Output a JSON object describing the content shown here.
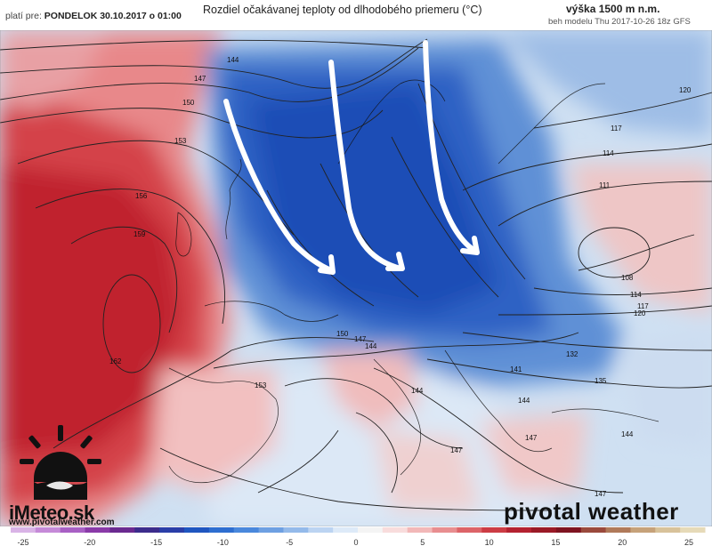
{
  "header": {
    "valid_label": "platí pre:",
    "valid_time": "PONDELOK 30.10.2017 o 01:00",
    "title": "Rozdiel očakávanej teploty od dlhodobého priemeru (°C)",
    "altitude": "výška 1500 m n.m.",
    "model_run": "beh modelu Thu 2017-10-26 18z GFS"
  },
  "contour_labels": {
    "c144a": "144",
    "c144b": "144",
    "c144c": "144",
    "c144d": "144",
    "c144e": "144",
    "c147a": "147",
    "c147b": "147",
    "c147c": "147",
    "c147d": "147",
    "c147e": "147",
    "c150a": "150",
    "c150b": "150",
    "c153a": "153",
    "c153b": "153",
    "c156": "156",
    "c159": "159",
    "c162": "162",
    "c120a": "120",
    "c120b": "120",
    "c117a": "117",
    "c117b": "117",
    "c114a": "114",
    "c114b": "114",
    "c111": "111",
    "c108": "108",
    "c132": "132",
    "c135": "135",
    "c141": "141"
  },
  "scale": {
    "ticks": [
      "-25",
      "-20",
      "-15",
      "-10",
      "-5",
      "0",
      "5",
      "10",
      "15",
      "20",
      "25"
    ],
    "colors": [
      "#d9b3e6",
      "#c58ad8",
      "#a860c4",
      "#8a3aa8",
      "#6a2a90",
      "#3c2c8c",
      "#2a3ea8",
      "#1f56c0",
      "#2e6ed0",
      "#4a88dc",
      "#6ea0e2",
      "#94baea",
      "#bcd4f2",
      "#ddeaf8",
      "#f4f4f4",
      "#f8dcdc",
      "#f2b8b8",
      "#e88e90",
      "#dc6468",
      "#cc3c44",
      "#b42230",
      "#9a1a26",
      "#7e1420",
      "#9a4a3c",
      "#b07a5a",
      "#c6a27a",
      "#d8c29a",
      "#e6dab8"
    ]
  },
  "brand": {
    "imeteo": "iMeteo.sk",
    "url": "www.pivotalweather.com",
    "pivotal": "pivotal weather"
  }
}
